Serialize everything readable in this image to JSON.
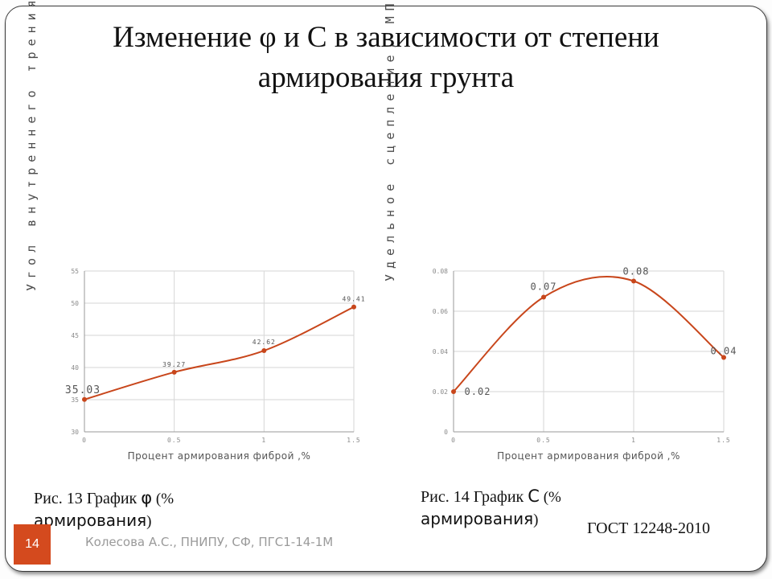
{
  "slide": {
    "title": "Изменение φ и С в зависимости от степени армирования грунта",
    "slide_number": "14",
    "footer": "Колесова А.С., ПНИПУ, СФ, ПГС1-14-1М",
    "gost": "ГОСТ 12248-2010"
  },
  "captions": {
    "left": {
      "prefix": "Рис. 13 График ",
      "symbol": "φ",
      "suffix": " (%",
      "word": "армирования",
      "close": ")"
    },
    "right": {
      "prefix": "Рис. 14 График ",
      "symbol": "С",
      "suffix": " (%",
      "word": "армирования",
      "close": ")"
    }
  },
  "accent_color": "#c8461b",
  "chart_data": [
    {
      "type": "line",
      "ylabel": "Угол внутреннего трения",
      "xlabel": "Процент армирования фиброй ,%",
      "x": [
        0,
        0.5,
        1,
        1.5
      ],
      "y": [
        35.03,
        39.27,
        42.62,
        49.41
      ],
      "data_labels": [
        "35.03",
        "39.27",
        "42.62",
        "49.41"
      ],
      "x_ticks": [
        "0",
        "0.5",
        "1",
        "1.5"
      ],
      "y_ticks": [
        "30",
        "35",
        "40",
        "45",
        "50",
        "55"
      ],
      "xlim": [
        0,
        1.5
      ],
      "ylim": [
        30,
        55
      ],
      "grid": true,
      "line_color": "#c8461b"
    },
    {
      "type": "line",
      "ylabel": "Удельное сцепление, МПа",
      "xlabel": "Процент армирования фиброй ,%",
      "x": [
        0,
        0.5,
        1,
        1.5
      ],
      "y": [
        0.02,
        0.067,
        0.075,
        0.037
      ],
      "data_labels": [
        "0.02",
        "0.07",
        "0.08",
        "0.04"
      ],
      "x_ticks": [
        "0",
        "0.5",
        "1",
        "1.5"
      ],
      "y_ticks": [
        "0",
        "0.02",
        "0.04",
        "0.06",
        "0.08"
      ],
      "xlim": [
        0,
        1.5
      ],
      "ylim": [
        0,
        0.08
      ],
      "grid": true,
      "line_color": "#c8461b"
    }
  ]
}
